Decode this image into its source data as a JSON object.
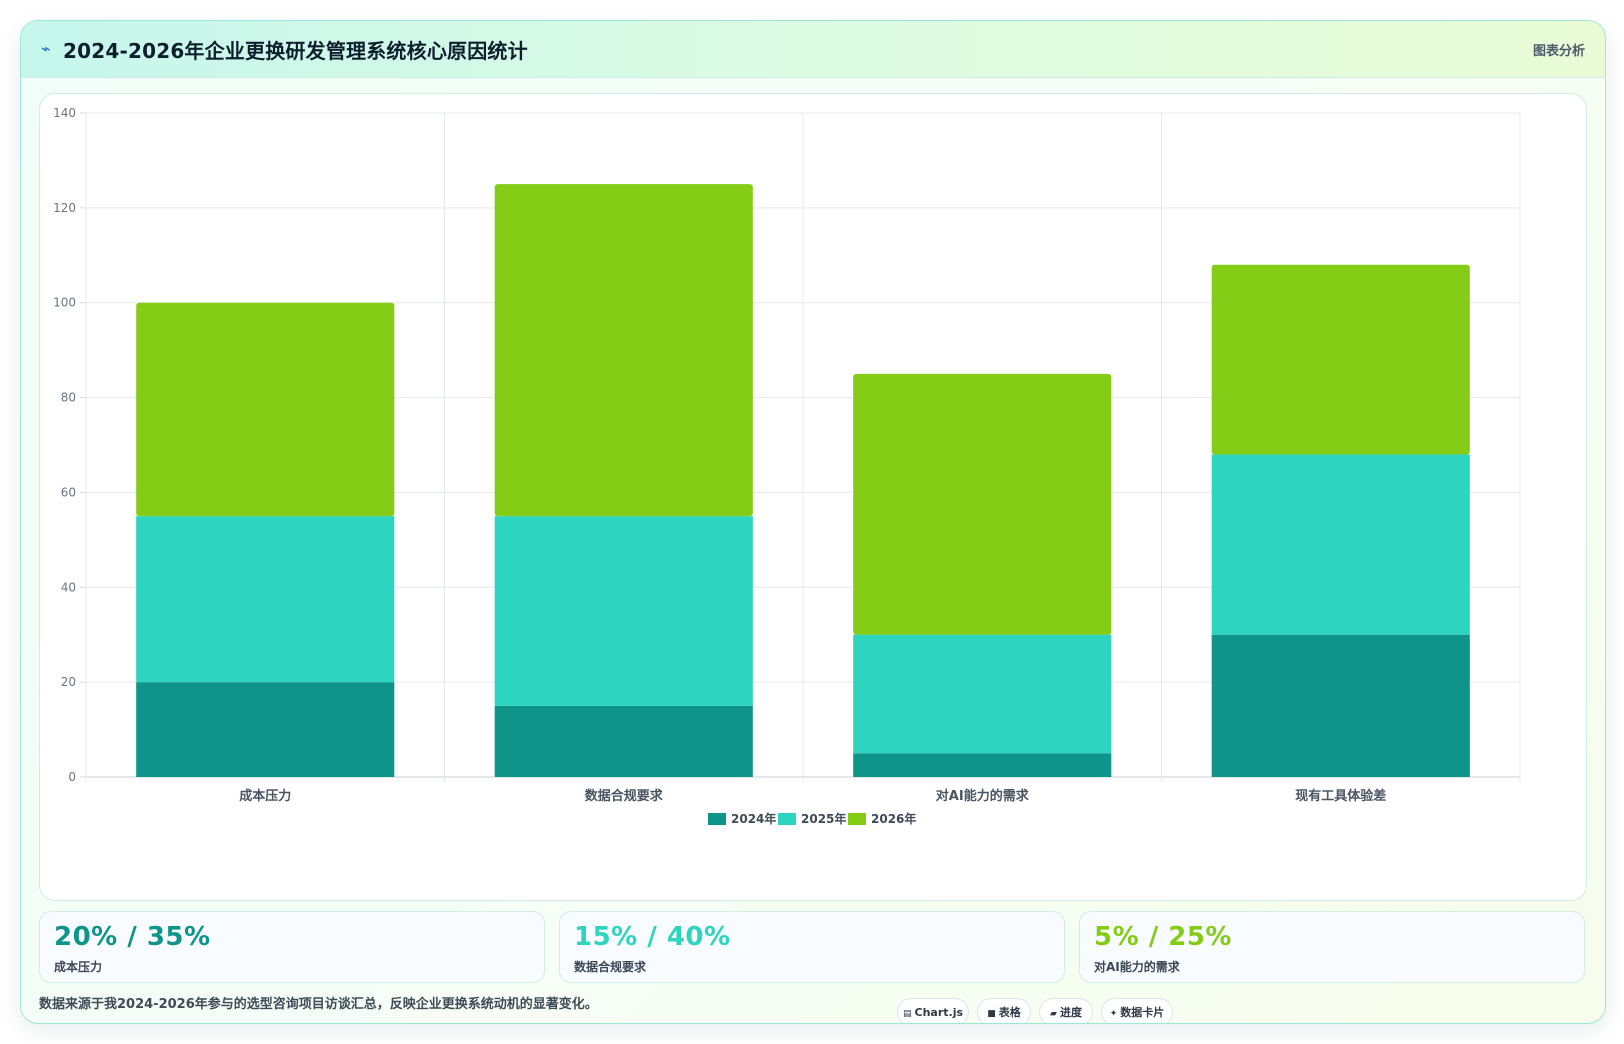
{
  "header": {
    "icon": "chart-icon",
    "title": "2024-2026年企业更换研发管理系统核心原因统计",
    "tag": "图表分析"
  },
  "colors": {
    "2024": "#0e9488",
    "2025": "#2dd4bf",
    "2026": "#84cc16"
  },
  "chart_data": {
    "type": "bar",
    "stacked": true,
    "categories": [
      "成本压力",
      "数据合规要求",
      "对AI能力的需求",
      "现有工具体验差"
    ],
    "series": [
      {
        "name": "2024年",
        "values": [
          20,
          15,
          5,
          30
        ],
        "color": "#0e9488"
      },
      {
        "name": "2025年",
        "values": [
          35,
          40,
          25,
          38
        ],
        "color": "#2dd4bf"
      },
      {
        "name": "2026年",
        "values": [
          45,
          70,
          55,
          40
        ],
        "color": "#84cc16"
      }
    ],
    "ylim": [
      0,
      140
    ],
    "yticks": [
      "0",
      "20",
      "40",
      "60",
      "80",
      "100",
      "120",
      "140"
    ],
    "xlabel": "",
    "ylabel": "",
    "grid": true,
    "legend": "bottom"
  },
  "stats": [
    {
      "value": "20% / 35%",
      "label": "成本压力",
      "color": "#0e9488"
    },
    {
      "value": "15% / 40%",
      "label": "数据合规要求",
      "color": "#2dd4bf"
    },
    {
      "value": "5% / 25%",
      "label": "对AI能力的需求",
      "color": "#84cc16"
    }
  ],
  "footer": {
    "note": "数据来源于我2024-2026年参与的选型咨询项目访谈汇总，反映企业更换系统动机的显著变化。",
    "chips": [
      {
        "icon": "chart-icon",
        "glyph": "▤",
        "label": "Chart.js"
      },
      {
        "icon": "table-icon",
        "glyph": "■",
        "label": "表格"
      },
      {
        "icon": "progress-icon",
        "glyph": "▰",
        "label": "进度"
      },
      {
        "icon": "sparkle-icon",
        "glyph": "✦",
        "label": "数据卡片"
      }
    ]
  }
}
